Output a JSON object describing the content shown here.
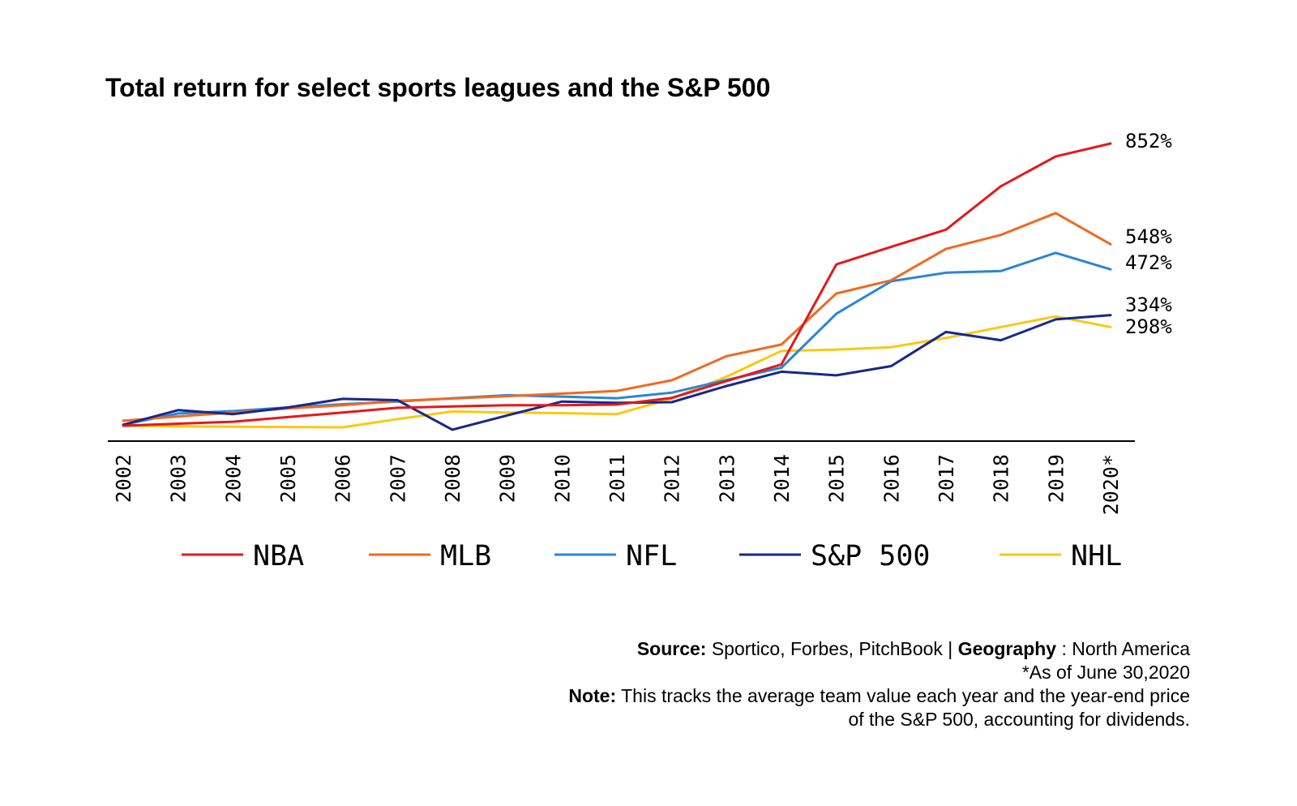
{
  "chart_data": {
    "type": "line",
    "title": "Total return for select sports leagues and the S&P 500",
    "xlabel": "",
    "ylabel": "",
    "categories": [
      "2002",
      "2003",
      "2004",
      "2005",
      "2006",
      "2007",
      "2008",
      "2009",
      "2010",
      "2011",
      "2012",
      "2013",
      "2014",
      "2015",
      "2016",
      "2017",
      "2018",
      "2019",
      "2020*"
    ],
    "ylim": [
      -20,
      900
    ],
    "grid": false,
    "legend_position": "bottom",
    "series": [
      {
        "name": "NBA",
        "color": "#e3191b",
        "values": [
          0,
          6,
          12,
          26,
          40,
          54,
          58,
          62,
          62,
          64,
          84,
          135,
          185,
          487,
          540,
          592,
          723,
          813,
          852
        ],
        "end_label": "852%"
      },
      {
        "name": "MLB",
        "color": "#f06a1f",
        "values": [
          15,
          28,
          40,
          52,
          62,
          75,
          82,
          89,
          97,
          105,
          137,
          210,
          245,
          399,
          439,
          534,
          576,
          642,
          548
        ],
        "end_label": "548%"
      },
      {
        "name": "NFL",
        "color": "#2b85d8",
        "values": [
          3,
          37,
          44,
          55,
          65,
          73,
          83,
          92,
          88,
          83,
          100,
          138,
          175,
          338,
          436,
          462,
          467,
          522,
          472
        ],
        "end_label": "472%"
      },
      {
        "name": "S&P 500",
        "color": "#16288c",
        "values": [
          3,
          47,
          35,
          55,
          81,
          77,
          -12,
          31,
          73,
          69,
          71,
          120,
          163,
          152,
          180,
          283,
          258,
          321,
          334
        ],
        "end_label": "334%"
      },
      {
        "name": "NHL",
        "color": "#fcc80f",
        "values": [
          0,
          -2,
          -3,
          -4,
          -5,
          20,
          43,
          40,
          38,
          35,
          82,
          148,
          226,
          230,
          237,
          265,
          298,
          330,
          298
        ],
        "end_label": "298%"
      }
    ]
  },
  "footer": {
    "source_label": "Source:",
    "source_text": " Sportico, Forbes, PitchBook | ",
    "geography_label": "Geography",
    "geography_text": " : North America",
    "asof_text": "*As of June 30,2020",
    "note_label": "Note:",
    "note_text": " This tracks the average team value each year and the year-end price",
    "note_text_2": "of the S&P 500, accounting for dividends."
  }
}
